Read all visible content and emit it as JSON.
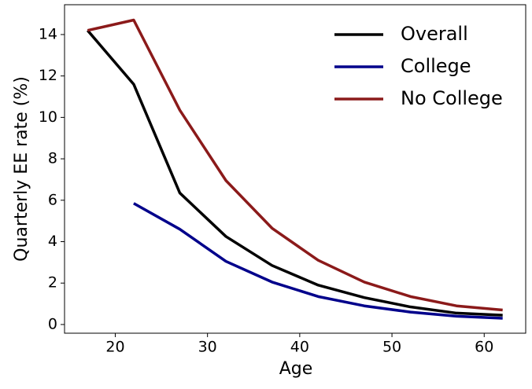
{
  "chart_data": {
    "type": "line",
    "x_label": "Age",
    "y_label": "Quarterly EE rate (%)",
    "x": [
      17,
      22,
      27,
      32,
      37,
      42,
      47,
      52,
      57,
      62
    ],
    "series": [
      {
        "name": "Overall",
        "color": "#000000",
        "values": [
          14.2,
          11.6,
          6.35,
          4.25,
          2.85,
          1.9,
          1.3,
          0.85,
          0.55,
          0.45
        ]
      },
      {
        "name": "College",
        "color": "#00008b",
        "values": [
          null,
          5.85,
          4.6,
          3.05,
          2.05,
          1.35,
          0.9,
          0.6,
          0.4,
          0.3
        ]
      },
      {
        "name": "No College",
        "color": "#8b1a1a",
        "values": [
          14.2,
          14.7,
          10.35,
          6.95,
          4.65,
          3.1,
          2.05,
          1.35,
          0.9,
          0.7
        ]
      }
    ],
    "xlim": [
      14.5,
      64.5
    ],
    "ylim": [
      -0.42,
      15.44
    ],
    "xticks": [
      20,
      30,
      40,
      50,
      60
    ],
    "yticks": [
      0,
      2,
      4,
      6,
      8,
      10,
      12,
      14
    ],
    "grid": false,
    "legend": "upper right"
  }
}
